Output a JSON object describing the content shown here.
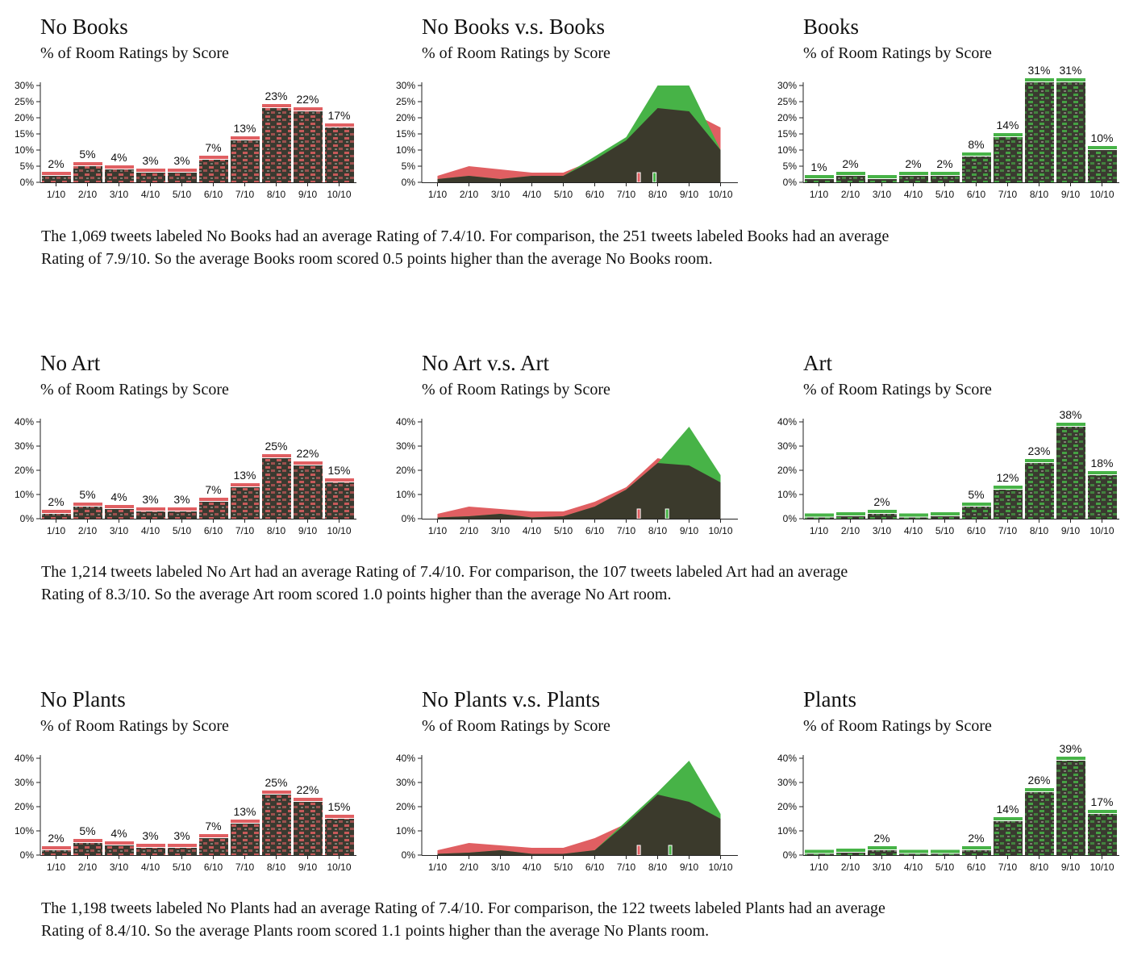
{
  "colors": {
    "no": "#e05f62",
    "yes": "#47b347",
    "overlap": "#3b3a2c",
    "axis": "#222222"
  },
  "sections": [
    {
      "summary_line1": "The 1,069 tweets labeled No Books had an average Rating of 7.4/10. For comparison, the 251 tweets labeled Books had an average",
      "summary_line2": "Rating of 7.9/10. So the average Books room scored 0.5 points higher than the average No Books room.",
      "charts": {
        "left": {
          "title": "No Books",
          "subtitle": "% of Room Ratings by Score"
        },
        "middle": {
          "title": "No Books v.s. Books",
          "subtitle": "% of Room Ratings by Score"
        },
        "right": {
          "title": "Books",
          "subtitle": "% of Room Ratings by Score"
        }
      }
    },
    {
      "summary_line1": "The 1,214 tweets labeled No Art had an average Rating of 7.4/10. For comparison, the 107 tweets labeled Art had an average",
      "summary_line2": "Rating of 8.3/10. So the average Art room scored 1.0 points higher than the average No Art room.",
      "charts": {
        "left": {
          "title": "No Art",
          "subtitle": "% of Room Ratings by Score"
        },
        "middle": {
          "title": "No Art v.s. Art",
          "subtitle": "% of Room Ratings by Score"
        },
        "right": {
          "title": "Art",
          "subtitle": "% of Room Ratings by Score"
        }
      }
    },
    {
      "summary_line1": "The 1,198 tweets labeled No Plants had an average Rating of 7.4/10. For comparison, the 122 tweets labeled Plants had an average",
      "summary_line2": "Rating of 8.4/10. So the average Plants room scored 1.1 points higher than the average No Plants room.",
      "charts": {
        "left": {
          "title": "No Plants",
          "subtitle": "% of Room Ratings by Score"
        },
        "middle": {
          "title": "No Plants v.s. Plants",
          "subtitle": "% of Room Ratings by Score"
        },
        "right": {
          "title": "Plants",
          "subtitle": "% of Room Ratings by Score"
        }
      }
    }
  ],
  "chart_data": [
    {
      "type": "bar",
      "title": "No Books",
      "subtitle": "% of Room Ratings by Score",
      "categories": [
        "1/10",
        "2/10",
        "3/10",
        "4/10",
        "5/10",
        "6/10",
        "7/10",
        "8/10",
        "9/10",
        "10/10"
      ],
      "values": [
        2,
        5,
        4,
        3,
        3,
        7,
        13,
        23,
        22,
        17
      ],
      "data_labels": [
        "2%",
        "5%",
        "4%",
        "3%",
        "3%",
        "7%",
        "13%",
        "23%",
        "22%",
        "17%"
      ],
      "yticks": [
        "0%",
        "5%",
        "10%",
        "15%",
        "20%",
        "25%",
        "30%"
      ],
      "ylim": [
        0,
        30
      ],
      "color": "no"
    },
    {
      "type": "area",
      "title": "No Books v.s. Books",
      "subtitle": "% of Room Ratings by Score",
      "categories": [
        "1/10",
        "2/10",
        "3/10",
        "4/10",
        "5/10",
        "6/10",
        "7/10",
        "8/10",
        "9/10",
        "10/10"
      ],
      "series": [
        {
          "values": [
            2,
            5,
            4,
            3,
            3,
            7,
            13,
            23,
            22,
            17
          ],
          "color": "no"
        },
        {
          "values": [
            1,
            2,
            1,
            2,
            2,
            8,
            14,
            31,
            31,
            10
          ],
          "color": "yes"
        }
      ],
      "means": [
        7.4,
        7.9
      ],
      "yticks": [
        "0%",
        "5%",
        "10%",
        "15%",
        "20%",
        "25%",
        "30%"
      ],
      "ylim": [
        0,
        30
      ]
    },
    {
      "type": "bar",
      "title": "Books",
      "subtitle": "% of Room Ratings by Score",
      "categories": [
        "1/10",
        "2/10",
        "3/10",
        "4/10",
        "5/10",
        "6/10",
        "7/10",
        "8/10",
        "9/10",
        "10/10"
      ],
      "values": [
        1,
        2,
        1,
        2,
        2,
        8,
        14,
        31,
        31,
        10
      ],
      "data_labels": [
        "1%",
        "2%",
        "",
        "2%",
        "2%",
        "8%",
        "14%",
        "31%",
        "31%",
        "10%"
      ],
      "yticks": [
        "0%",
        "5%",
        "10%",
        "15%",
        "20%",
        "25%",
        "30%"
      ],
      "ylim": [
        0,
        30
      ],
      "color": "yes"
    },
    {
      "type": "bar",
      "title": "No Art",
      "subtitle": "% of Room Ratings by Score",
      "categories": [
        "1/10",
        "2/10",
        "3/10",
        "4/10",
        "5/10",
        "6/10",
        "7/10",
        "8/10",
        "9/10",
        "10/10"
      ],
      "values": [
        2,
        5,
        4,
        3,
        3,
        7,
        13,
        25,
        22,
        15
      ],
      "data_labels": [
        "2%",
        "5%",
        "4%",
        "3%",
        "3%",
        "7%",
        "13%",
        "25%",
        "22%",
        "15%"
      ],
      "yticks": [
        "0%",
        "10%",
        "20%",
        "30%",
        "40%"
      ],
      "ylim": [
        0,
        40
      ],
      "color": "no"
    },
    {
      "type": "area",
      "title": "No Art v.s. Art",
      "subtitle": "% of Room Ratings by Score",
      "categories": [
        "1/10",
        "2/10",
        "3/10",
        "4/10",
        "5/10",
        "6/10",
        "7/10",
        "8/10",
        "9/10",
        "10/10"
      ],
      "series": [
        {
          "values": [
            2,
            5,
            4,
            3,
            3,
            7,
            13,
            25,
            22,
            15
          ],
          "color": "no"
        },
        {
          "values": [
            0.5,
            1,
            2,
            0.5,
            1,
            5,
            12,
            23,
            38,
            18
          ],
          "color": "yes"
        }
      ],
      "means": [
        7.4,
        8.3
      ],
      "yticks": [
        "0%",
        "10%",
        "20%",
        "30%",
        "40%"
      ],
      "ylim": [
        0,
        40
      ]
    },
    {
      "type": "bar",
      "title": "Art",
      "subtitle": "% of Room Ratings by Score",
      "categories": [
        "1/10",
        "2/10",
        "3/10",
        "4/10",
        "5/10",
        "6/10",
        "7/10",
        "8/10",
        "9/10",
        "10/10"
      ],
      "values": [
        0.5,
        1,
        2,
        0.5,
        1,
        5,
        12,
        23,
        38,
        18
      ],
      "data_labels": [
        "",
        "",
        "2%",
        "",
        "",
        "5%",
        "12%",
        "23%",
        "38%",
        "18%"
      ],
      "yticks": [
        "0%",
        "10%",
        "20%",
        "30%",
        "40%"
      ],
      "ylim": [
        0,
        40
      ],
      "color": "yes"
    },
    {
      "type": "bar",
      "title": "No Plants",
      "subtitle": "% of Room Ratings by Score",
      "categories": [
        "1/10",
        "2/10",
        "3/10",
        "4/10",
        "5/10",
        "6/10",
        "7/10",
        "8/10",
        "9/10",
        "10/10"
      ],
      "values": [
        2,
        5,
        4,
        3,
        3,
        7,
        13,
        25,
        22,
        15
      ],
      "data_labels": [
        "2%",
        "5%",
        "4%",
        "3%",
        "3%",
        "7%",
        "13%",
        "25%",
        "22%",
        "15%"
      ],
      "yticks": [
        "0%",
        "10%",
        "20%",
        "30%",
        "40%"
      ],
      "ylim": [
        0,
        40
      ],
      "color": "no"
    },
    {
      "type": "area",
      "title": "No Plants v.s. Plants",
      "subtitle": "% of Room Ratings by Score",
      "categories": [
        "1/10",
        "2/10",
        "3/10",
        "4/10",
        "5/10",
        "6/10",
        "7/10",
        "8/10",
        "9/10",
        "10/10"
      ],
      "series": [
        {
          "values": [
            2,
            5,
            4,
            3,
            3,
            7,
            13,
            25,
            22,
            15
          ],
          "color": "no"
        },
        {
          "values": [
            0.5,
            1,
            2,
            0.5,
            0.5,
            2,
            14,
            26,
            39,
            17
          ],
          "color": "yes"
        }
      ],
      "means": [
        7.4,
        8.4
      ],
      "yticks": [
        "0%",
        "10%",
        "20%",
        "30%",
        "40%"
      ],
      "ylim": [
        0,
        40
      ]
    },
    {
      "type": "bar",
      "title": "Plants",
      "subtitle": "% of Room Ratings by Score",
      "categories": [
        "1/10",
        "2/10",
        "3/10",
        "4/10",
        "5/10",
        "6/10",
        "7/10",
        "8/10",
        "9/10",
        "10/10"
      ],
      "values": [
        0.5,
        1,
        2,
        0.5,
        0.5,
        2,
        14,
        26,
        39,
        17
      ],
      "data_labels": [
        "",
        "",
        "2%",
        "",
        "",
        "2%",
        "14%",
        "26%",
        "39%",
        "17%"
      ],
      "yticks": [
        "0%",
        "10%",
        "20%",
        "30%",
        "40%"
      ],
      "ylim": [
        0,
        40
      ],
      "color": "yes"
    }
  ]
}
